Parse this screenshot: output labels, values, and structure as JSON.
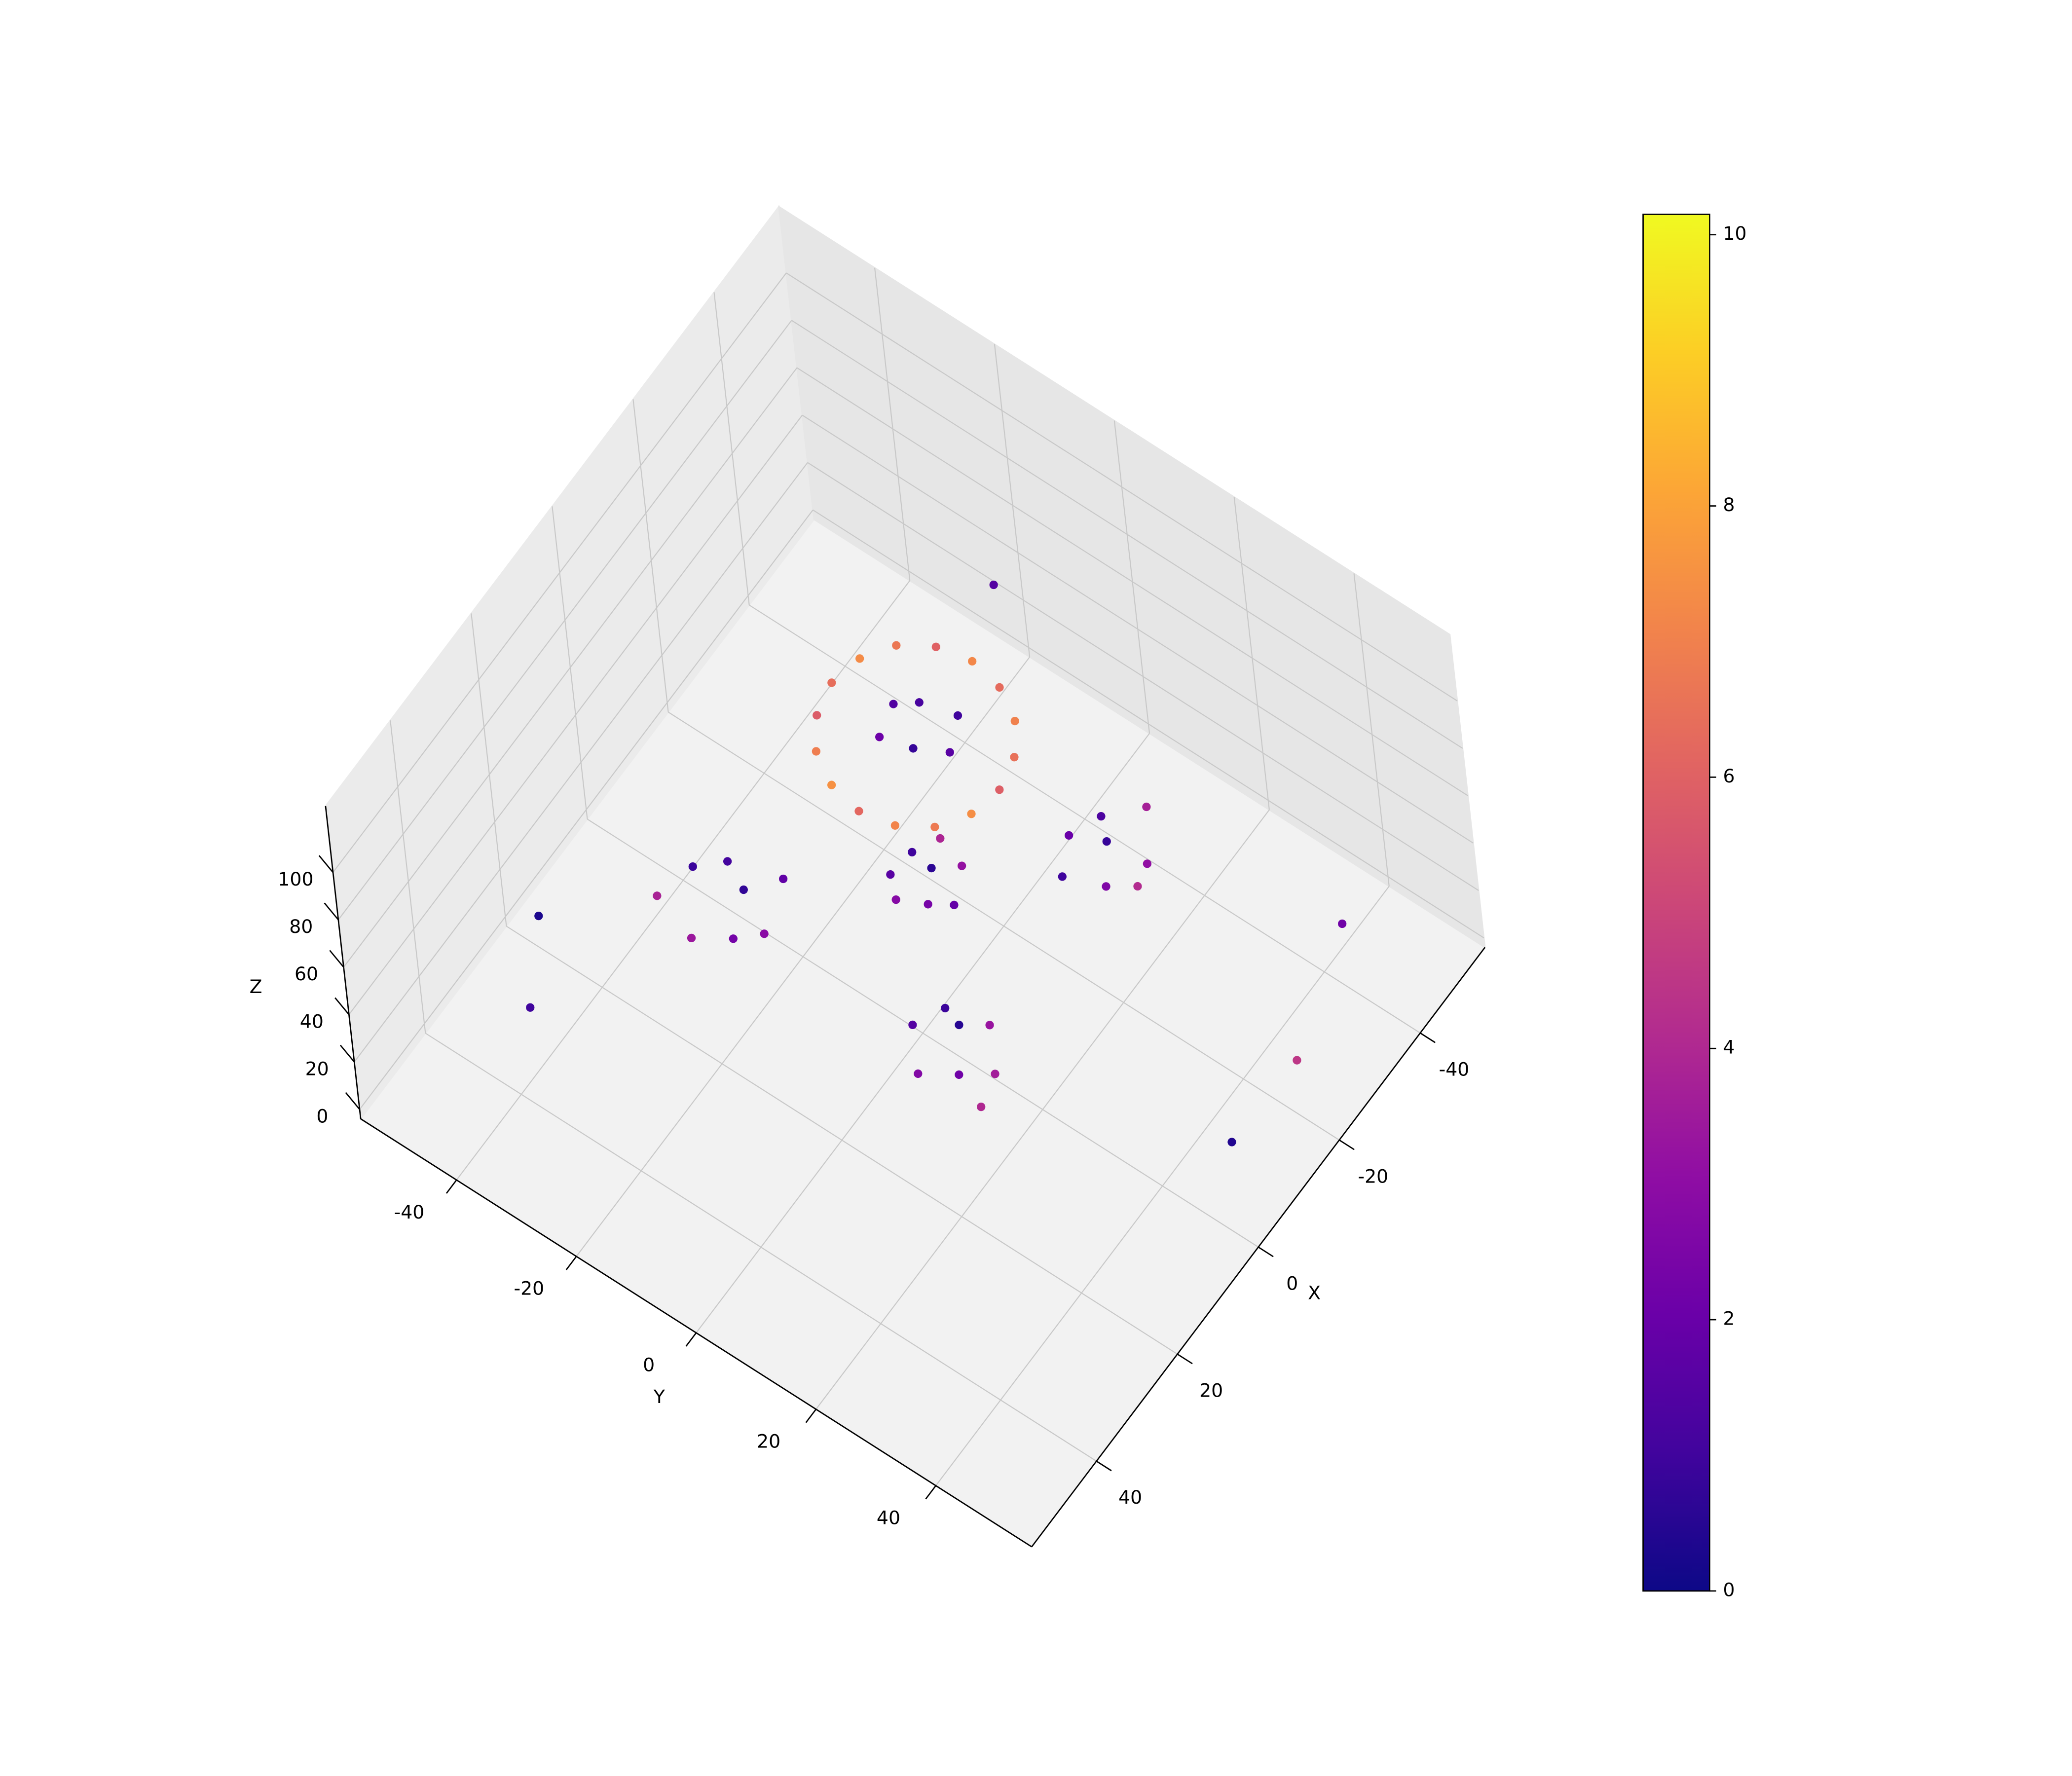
{
  "chart_data": {
    "type": "scatter3d",
    "xlabel": "X",
    "ylabel": "Y",
    "zlabel": "Z",
    "xlim": [
      -56,
      56
    ],
    "ylim": [
      -56,
      56
    ],
    "zlim": [
      -4,
      128
    ],
    "xticks": [
      -40,
      -20,
      0,
      20,
      40
    ],
    "yticks": [
      -40,
      -20,
      0,
      20,
      40
    ],
    "zticks": [
      0,
      20,
      40,
      60,
      80,
      100
    ],
    "grid": true,
    "colormap": "plasma",
    "clim": [
      0,
      10.15
    ],
    "cticks": [
      0,
      2,
      4,
      6,
      8,
      10
    ],
    "x": [
      6,
      4.9,
      1.9,
      -2.7,
      -8,
      -13.3,
      -17.9,
      -20.9,
      -22,
      -20.9,
      -17.9,
      -13.3,
      -8,
      -2.7,
      1.9,
      4.9,
      -12,
      -6,
      -9,
      -14,
      -5,
      -10,
      -4,
      5,
      0,
      8,
      -6,
      3,
      -2,
      6,
      -40,
      -31,
      -38,
      -29,
      -44,
      -35,
      -33,
      -37,
      -20,
      -15,
      -22,
      -16,
      -19,
      -13,
      -24,
      -17,
      -3,
      4,
      2,
      -5,
      8,
      1,
      -2,
      6,
      -50,
      20,
      -45,
      -20,
      30,
      -10
    ],
    "y": [
      -2,
      3.3,
      7.9,
      10.9,
      12,
      10.9,
      7.9,
      3.3,
      -2,
      -7.3,
      -11.9,
      -14.9,
      -16,
      -14.9,
      -11.9,
      -7.3,
      -4,
      -1,
      3,
      1,
      -6,
      -7,
      -35,
      -28,
      -38,
      -33,
      -27,
      -24,
      -31,
      -40,
      3,
      10,
      12,
      4,
      8,
      1,
      14,
      6,
      -15,
      -9,
      -8,
      -16,
      -11,
      -13,
      -13,
      -6,
      2,
      9,
      0,
      8,
      5,
      13,
      5,
      14,
      -20,
      -50,
      40,
      50,
      -45,
      45
    ],
    "z": [
      100,
      100,
      100,
      100,
      100,
      100,
      100,
      100,
      100,
      100,
      100,
      100,
      100,
      100,
      100,
      100,
      102,
      101,
      99,
      100,
      100,
      101,
      3,
      2,
      5,
      1,
      4,
      6,
      2,
      3,
      2,
      4,
      1,
      3,
      5,
      2,
      6,
      3,
      3,
      2,
      4,
      1,
      5,
      2,
      3,
      2,
      3,
      2,
      4,
      1,
      5,
      2,
      3,
      1,
      40,
      10,
      5,
      20,
      2,
      0
    ],
    "c": [
      6.2,
      7.1,
      6.8,
      7.4,
      5.9,
      6.5,
      7.0,
      6.3,
      7.2,
      6.0,
      6.7,
      7.3,
      6.4,
      5.8,
      6.9,
      7.5,
      1.2,
      0.8,
      1.6,
      1.0,
      2.1,
      1.4,
      1.1,
      2.3,
      0.9,
      3.4,
      1.8,
      2.9,
      0.7,
      3.8,
      1.3,
      2.6,
      3.1,
      1.0,
      3.7,
      2.0,
      4.1,
      0.8,
      1.0,
      2.4,
      3.2,
      1.6,
      0.6,
      2.8,
      3.9,
      1.9,
      0.9,
      2.2,
      1.5,
      3.3,
      2.7,
      3.6,
      0.5,
      4.0,
      1.5,
      0.3,
      2.2,
      4.5,
      1.0,
      0.4
    ]
  }
}
